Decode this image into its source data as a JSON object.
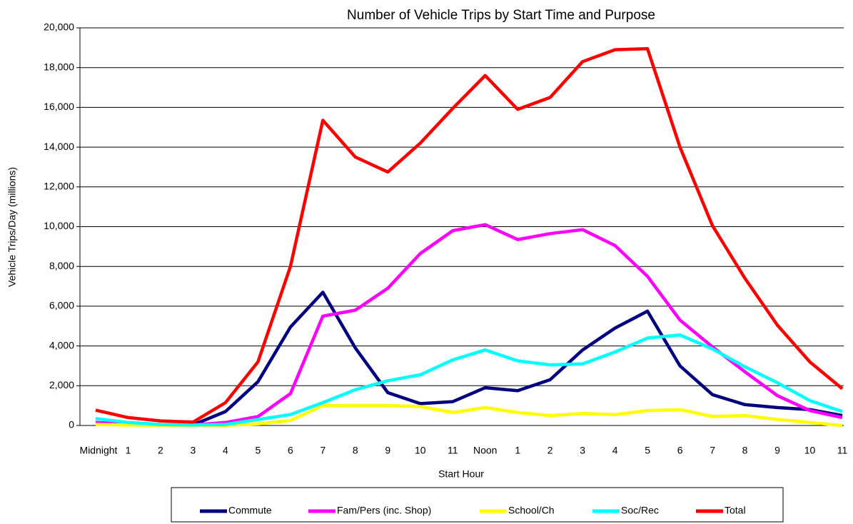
{
  "chart_data": {
    "type": "line",
    "title": "Number of Vehicle Trips by Start Time and Purpose",
    "y_label": "Vehicle Trips/Day  (millions)",
    "x_label": "Start Hour",
    "categories": [
      "Midnight",
      "1",
      "2",
      "3",
      "4",
      "5",
      "6",
      "7",
      "8",
      "9",
      "10",
      "11",
      "Noon",
      "1",
      "2",
      "3",
      "4",
      "5",
      "6",
      "7",
      "8",
      "9",
      "10",
      "11"
    ],
    "ylim": [
      0,
      20000
    ],
    "yticks": [
      0,
      {
        "value": 2000,
        "label": "2,000"
      },
      {
        "value": 4000,
        "label": "4,000"
      },
      {
        "value": 6000,
        "label": "6,000"
      },
      {
        "value": 8000,
        "label": "8,000"
      },
      {
        "value": 10000,
        "label": "10,000"
      },
      {
        "value": 12000,
        "label": "12,000"
      },
      {
        "value": 14000,
        "label": "14,000"
      },
      {
        "value": 16000,
        "label": "16,000"
      },
      {
        "value": 18000,
        "label": "18,000"
      },
      {
        "value": 20000,
        "label": "20,000"
      }
    ],
    "grid": true,
    "legend": "bottom",
    "series": [
      {
        "name": "Commute",
        "color": "#000080",
        "values": [
          100,
          50,
          20,
          30,
          700,
          2200,
          4950,
          6700,
          3900,
          1650,
          1100,
          1200,
          1900,
          1750,
          2300,
          3800,
          4900,
          5750,
          3000,
          1550,
          1050,
          900,
          800,
          500
        ]
      },
      {
        "name": "Fam/Pers (inc. Shop)",
        "color": "#ff00ff",
        "values": [
          150,
          80,
          30,
          30,
          150,
          450,
          1600,
          5500,
          5800,
          6900,
          8650,
          9800,
          10100,
          9350,
          9650,
          9850,
          9050,
          7500,
          5300,
          3950,
          2700,
          1500,
          750,
          400
        ]
      },
      {
        "name": "School/Ch",
        "color": "#ffff00",
        "values": [
          50,
          20,
          10,
          10,
          10,
          80,
          250,
          1000,
          1000,
          1000,
          950,
          650,
          900,
          650,
          500,
          600,
          550,
          750,
          800,
          450,
          500,
          300,
          150,
          0
        ]
      },
      {
        "name": "Soc/Rec",
        "color": "#00ffff",
        "values": [
          350,
          150,
          50,
          30,
          50,
          300,
          550,
          1150,
          1800,
          2250,
          2550,
          3300,
          3800,
          3250,
          3050,
          3100,
          3700,
          4400,
          4550,
          3850,
          2950,
          2150,
          1250,
          700
        ]
      },
      {
        "name": "Total",
        "color": "#ff0000",
        "values": [
          770,
          400,
          230,
          170,
          1150,
          3200,
          8000,
          15350,
          13500,
          12750,
          14200,
          15950,
          17600,
          15900,
          16500,
          18300,
          18900,
          18950,
          14000,
          10050,
          7400,
          5050,
          3200,
          1850
        ]
      }
    ]
  }
}
